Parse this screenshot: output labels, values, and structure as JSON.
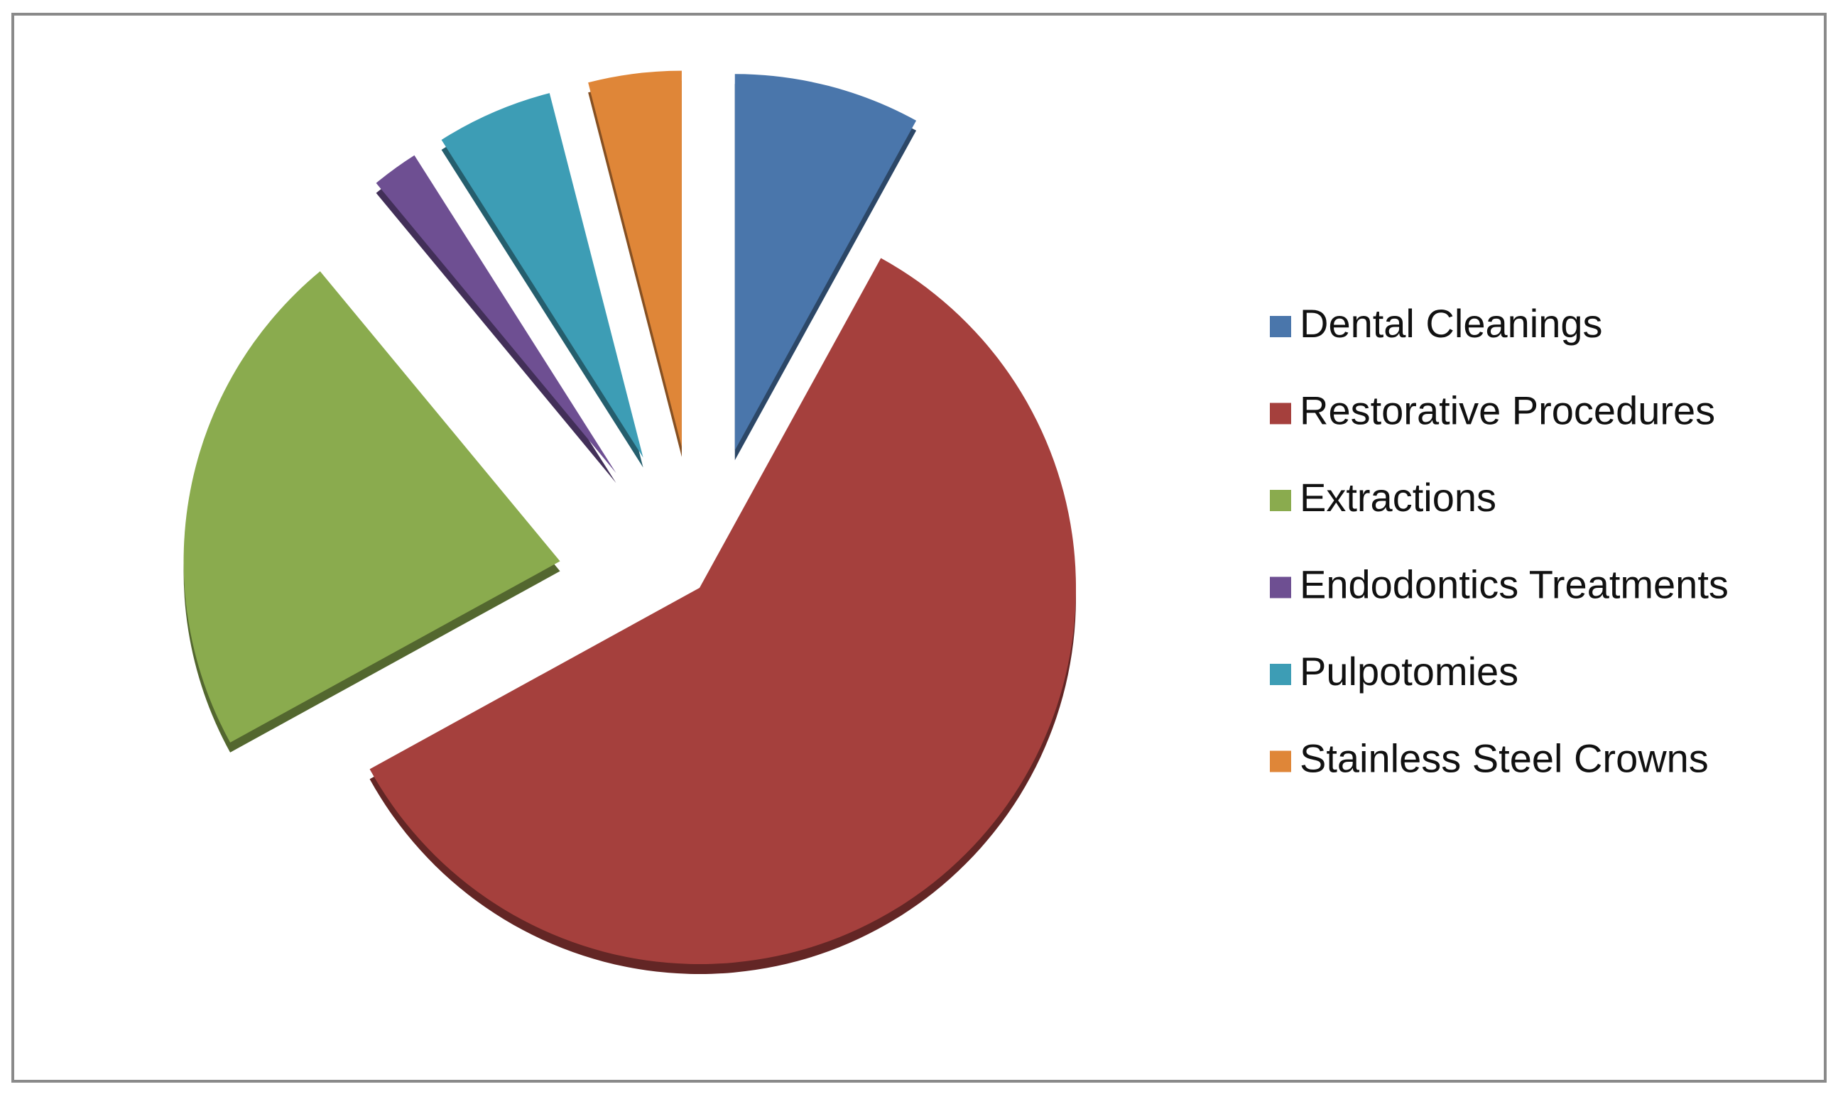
{
  "chart_data": {
    "type": "pie",
    "categories": [
      "Dental Cleanings",
      "Restorative Procedures",
      "Extractions",
      "Endodontics Treatments",
      "Pulpotomies",
      "Stainless Steel Crowns"
    ],
    "values": [
      8,
      59,
      22,
      2,
      5,
      4
    ],
    "colors": [
      "#4a76ab",
      "#a5403d",
      "#8aab4e",
      "#6e4f92",
      "#3d9db5",
      "#df8638"
    ],
    "legend": "right"
  }
}
